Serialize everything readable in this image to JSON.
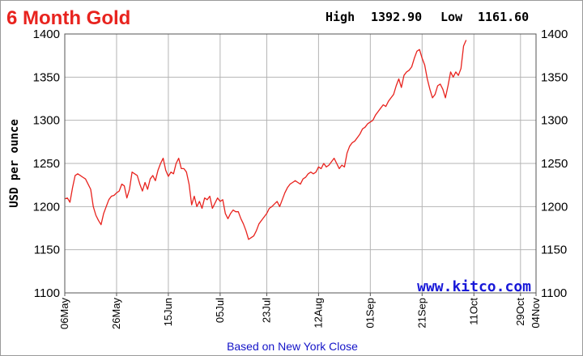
{
  "chart_data": {
    "type": "line",
    "title": "6 Month Gold",
    "high_label": "High",
    "high_value": "1392.90",
    "low_label": "Low",
    "low_value": "1161.60",
    "ylabel": "USD per ounce",
    "ylim": [
      1100,
      1400
    ],
    "yticks": [
      "1100",
      "1150",
      "1200",
      "1250",
      "1300",
      "1350",
      "1400"
    ],
    "xlim": [
      "2010-05-06",
      "2010-11-04"
    ],
    "xticks": [
      {
        "label": "06May",
        "date": "2010-05-06"
      },
      {
        "label": "26May",
        "date": "2010-05-26"
      },
      {
        "label": "15Jun",
        "date": "2010-06-15"
      },
      {
        "label": "05Jul",
        "date": "2010-07-05"
      },
      {
        "label": "23Jul",
        "date": "2010-07-23"
      },
      {
        "label": "12Aug",
        "date": "2010-08-12"
      },
      {
        "label": "01Sep",
        "date": "2010-09-01"
      },
      {
        "label": "21Sep",
        "date": "2010-09-21"
      },
      {
        "label": "11Oct",
        "date": "2010-10-11"
      },
      {
        "label": "29Oct",
        "date": "2010-10-29"
      },
      {
        "label": "04Nov",
        "date": "2010-11-04"
      }
    ],
    "grid": true,
    "line_color": "#e8231e",
    "series": [
      {
        "points": [
          [
            "2010-05-06",
            1209
          ],
          [
            "2010-05-07",
            1210
          ],
          [
            "2010-05-08",
            1205
          ],
          [
            "2010-05-09",
            1222
          ],
          [
            "2010-05-10",
            1236
          ],
          [
            "2010-05-11",
            1238
          ],
          [
            "2010-05-12",
            1236
          ],
          [
            "2010-05-13",
            1234
          ],
          [
            "2010-05-14",
            1232
          ],
          [
            "2010-05-15",
            1226
          ],
          [
            "2010-05-16",
            1220
          ],
          [
            "2010-05-17",
            1200
          ],
          [
            "2010-05-18",
            1190
          ],
          [
            "2010-05-19",
            1184
          ],
          [
            "2010-05-20",
            1179
          ],
          [
            "2010-05-21",
            1192
          ],
          [
            "2010-05-22",
            1200
          ],
          [
            "2010-05-23",
            1208
          ],
          [
            "2010-05-24",
            1212
          ],
          [
            "2010-05-25",
            1213
          ],
          [
            "2010-05-26",
            1216
          ],
          [
            "2010-05-27",
            1218
          ],
          [
            "2010-05-28",
            1226
          ],
          [
            "2010-05-29",
            1224
          ],
          [
            "2010-05-30",
            1210
          ],
          [
            "2010-05-31",
            1220
          ],
          [
            "2010-06-01",
            1240
          ],
          [
            "2010-06-02",
            1238
          ],
          [
            "2010-06-03",
            1236
          ],
          [
            "2010-06-04",
            1226
          ],
          [
            "2010-06-05",
            1218
          ],
          [
            "2010-06-06",
            1228
          ],
          [
            "2010-06-07",
            1220
          ],
          [
            "2010-06-08",
            1232
          ],
          [
            "2010-06-09",
            1236
          ],
          [
            "2010-06-10",
            1230
          ],
          [
            "2010-06-11",
            1242
          ],
          [
            "2010-06-12",
            1250
          ],
          [
            "2010-06-13",
            1256
          ],
          [
            "2010-06-14",
            1242
          ],
          [
            "2010-06-15",
            1235
          ],
          [
            "2010-06-16",
            1240
          ],
          [
            "2010-06-17",
            1238
          ],
          [
            "2010-06-18",
            1250
          ],
          [
            "2010-06-19",
            1256
          ],
          [
            "2010-06-20",
            1244
          ],
          [
            "2010-06-21",
            1244
          ],
          [
            "2010-06-22",
            1240
          ],
          [
            "2010-06-23",
            1226
          ],
          [
            "2010-06-24",
            1202
          ],
          [
            "2010-06-25",
            1212
          ],
          [
            "2010-06-26",
            1200
          ],
          [
            "2010-06-27",
            1206
          ],
          [
            "2010-06-28",
            1198
          ],
          [
            "2010-06-29",
            1210
          ],
          [
            "2010-06-30",
            1208
          ],
          [
            "2010-07-01",
            1212
          ],
          [
            "2010-07-02",
            1198
          ],
          [
            "2010-07-03",
            1204
          ],
          [
            "2010-07-04",
            1210
          ],
          [
            "2010-07-05",
            1206
          ],
          [
            "2010-07-06",
            1208
          ],
          [
            "2010-07-07",
            1192
          ],
          [
            "2010-07-08",
            1186
          ],
          [
            "2010-07-09",
            1192
          ],
          [
            "2010-07-10",
            1196
          ],
          [
            "2010-07-11",
            1194
          ],
          [
            "2010-07-12",
            1194
          ],
          [
            "2010-07-13",
            1186
          ],
          [
            "2010-07-14",
            1180
          ],
          [
            "2010-07-15",
            1172
          ],
          [
            "2010-07-16",
            1162
          ],
          [
            "2010-07-17",
            1164
          ],
          [
            "2010-07-18",
            1166
          ],
          [
            "2010-07-19",
            1172
          ],
          [
            "2010-07-20",
            1180
          ],
          [
            "2010-07-21",
            1184
          ],
          [
            "2010-07-22",
            1188
          ],
          [
            "2010-07-23",
            1192
          ],
          [
            "2010-07-24",
            1198
          ],
          [
            "2010-07-25",
            1200
          ],
          [
            "2010-07-26",
            1203
          ],
          [
            "2010-07-27",
            1206
          ],
          [
            "2010-07-28",
            1200
          ],
          [
            "2010-07-29",
            1208
          ],
          [
            "2010-07-30",
            1216
          ],
          [
            "2010-07-31",
            1222
          ],
          [
            "2010-08-01",
            1226
          ],
          [
            "2010-08-02",
            1228
          ],
          [
            "2010-08-03",
            1230
          ],
          [
            "2010-08-04",
            1228
          ],
          [
            "2010-08-05",
            1226
          ],
          [
            "2010-08-06",
            1232
          ],
          [
            "2010-08-07",
            1234
          ],
          [
            "2010-08-08",
            1238
          ],
          [
            "2010-08-09",
            1240
          ],
          [
            "2010-08-10",
            1238
          ],
          [
            "2010-08-11",
            1240
          ],
          [
            "2010-08-12",
            1246
          ],
          [
            "2010-08-13",
            1244
          ],
          [
            "2010-08-14",
            1250
          ],
          [
            "2010-08-15",
            1246
          ],
          [
            "2010-08-16",
            1248
          ],
          [
            "2010-08-17",
            1252
          ],
          [
            "2010-08-18",
            1256
          ],
          [
            "2010-08-19",
            1250
          ],
          [
            "2010-08-20",
            1244
          ],
          [
            "2010-08-21",
            1248
          ],
          [
            "2010-08-22",
            1246
          ],
          [
            "2010-08-23",
            1262
          ],
          [
            "2010-08-24",
            1270
          ],
          [
            "2010-08-25",
            1274
          ],
          [
            "2010-08-26",
            1276
          ],
          [
            "2010-08-27",
            1280
          ],
          [
            "2010-08-28",
            1284
          ],
          [
            "2010-08-29",
            1290
          ],
          [
            "2010-08-30",
            1292
          ],
          [
            "2010-08-31",
            1296
          ],
          [
            "2010-09-01",
            1298
          ],
          [
            "2010-09-02",
            1300
          ],
          [
            "2010-09-03",
            1306
          ],
          [
            "2010-09-04",
            1310
          ],
          [
            "2010-09-05",
            1314
          ],
          [
            "2010-09-06",
            1318
          ],
          [
            "2010-09-07",
            1316
          ],
          [
            "2010-09-08",
            1322
          ],
          [
            "2010-09-09",
            1326
          ],
          [
            "2010-09-10",
            1330
          ],
          [
            "2010-09-11",
            1340
          ],
          [
            "2010-09-12",
            1348
          ],
          [
            "2010-09-13",
            1338
          ],
          [
            "2010-09-14",
            1352
          ],
          [
            "2010-09-15",
            1356
          ],
          [
            "2010-09-16",
            1358
          ],
          [
            "2010-09-17",
            1362
          ],
          [
            "2010-09-18",
            1372
          ],
          [
            "2010-09-19",
            1380
          ],
          [
            "2010-09-20",
            1382
          ],
          [
            "2010-09-21",
            1372
          ],
          [
            "2010-09-22",
            1364
          ],
          [
            "2010-09-23",
            1348
          ],
          [
            "2010-09-24",
            1336
          ],
          [
            "2010-09-25",
            1326
          ],
          [
            "2010-09-26",
            1330
          ],
          [
            "2010-09-27",
            1340
          ],
          [
            "2010-09-28",
            1342
          ],
          [
            "2010-09-29",
            1336
          ],
          [
            "2010-09-30",
            1326
          ],
          [
            "2010-10-01",
            1340
          ],
          [
            "2010-10-02",
            1356
          ],
          [
            "2010-10-03",
            1350
          ],
          [
            "2010-10-04",
            1356
          ],
          [
            "2010-10-05",
            1352
          ],
          [
            "2010-10-06",
            1360
          ],
          [
            "2010-10-07",
            1386
          ],
          [
            "2010-10-08",
            1393
          ]
        ]
      }
    ],
    "watermark": "www.kitco.com",
    "footer": "Based on New York Close"
  }
}
